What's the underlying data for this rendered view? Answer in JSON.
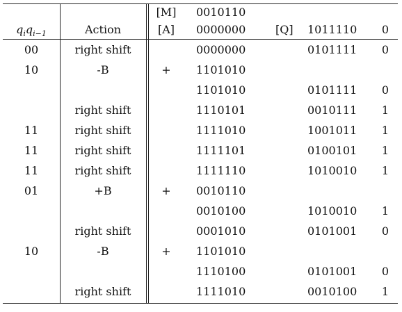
{
  "table": {
    "header_rows": [
      {
        "q": "",
        "action": "",
        "sign": "[M]",
        "reg": "0010110",
        "qlabel": "",
        "qreg": "",
        "bit": ""
      },
      {
        "q": "",
        "action": "Action",
        "sign": "[A]",
        "reg": "0000000",
        "qlabel": "[Q]",
        "qreg": "1011110",
        "bit": "0"
      }
    ],
    "header_q_label": {
      "base": "q",
      "sub_i": "i",
      "base2": "q",
      "sub_i1": "i−1"
    },
    "rows": [
      {
        "q": "00",
        "action": "right shift",
        "sign": "",
        "reg": "0000000",
        "qreg": "0101111",
        "bit": "0"
      },
      {
        "q": "10",
        "action": "-B",
        "sign": "+",
        "reg": "1101010",
        "qreg": "",
        "bit": ""
      },
      {
        "q": "",
        "action": "",
        "sign": "",
        "reg": "1101010",
        "qreg": "0101111",
        "bit": "0"
      },
      {
        "q": "",
        "action": "right shift",
        "sign": "",
        "reg": "1110101",
        "qreg": "0010111",
        "bit": "1"
      },
      {
        "q": "11",
        "action": "right shift",
        "sign": "",
        "reg": "1111010",
        "qreg": "1001011",
        "bit": "1"
      },
      {
        "q": "11",
        "action": "right shift",
        "sign": "",
        "reg": "1111101",
        "qreg": "0100101",
        "bit": "1"
      },
      {
        "q": "11",
        "action": "right shift",
        "sign": "",
        "reg": "1111110",
        "qreg": "1010010",
        "bit": "1"
      },
      {
        "q": "01",
        "action": "+B",
        "sign": "+",
        "reg": "0010110",
        "qreg": "",
        "bit": ""
      },
      {
        "q": "",
        "action": "",
        "sign": "",
        "reg": "0010100",
        "qreg": "1010010",
        "bit": "1"
      },
      {
        "q": "",
        "action": "right shift",
        "sign": "",
        "reg": "0001010",
        "qreg": "0101001",
        "bit": "0"
      },
      {
        "q": "10",
        "action": "-B",
        "sign": "+",
        "reg": "1101010",
        "qreg": "",
        "bit": ""
      },
      {
        "q": "",
        "action": "",
        "sign": "",
        "reg": "1110100",
        "qreg": "0101001",
        "bit": "0"
      },
      {
        "q": "",
        "action": "right shift",
        "sign": "",
        "reg": "1111010",
        "qreg": "0010100",
        "bit": "1"
      }
    ]
  }
}
